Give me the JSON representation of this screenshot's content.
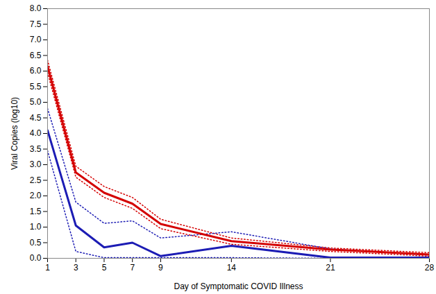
{
  "chart_data": {
    "type": "line",
    "x_label": "Day of Symptomatic COVID Illness",
    "y_label": "Viral Copies (log10)",
    "x": [
      1,
      3,
      5,
      7,
      9,
      14,
      21,
      28
    ],
    "xlim": [
      1,
      28
    ],
    "xticks": [
      1,
      3,
      5,
      7,
      9,
      14,
      21,
      28
    ],
    "ylim": [
      0,
      8
    ],
    "yticks": [
      {
        "value": 0,
        "label": "0.0"
      },
      {
        "value": 0.5,
        "label": "0.5"
      },
      {
        "value": 1,
        "label": "1.0"
      },
      {
        "value": 1.5,
        "label": "1.5"
      },
      {
        "value": 2,
        "label": "2.0"
      },
      {
        "value": 2.5,
        "label": "2.5"
      },
      {
        "value": 3,
        "label": "3.0"
      },
      {
        "value": 3.5,
        "label": "3.5"
      },
      {
        "value": 4,
        "label": "4.0"
      },
      {
        "value": 4.5,
        "label": "4.5"
      },
      {
        "value": 5,
        "label": "5.0"
      },
      {
        "value": 5.5,
        "label": "5.5"
      },
      {
        "value": 6,
        "label": "6.0"
      },
      {
        "value": 6.5,
        "label": "6.5"
      },
      {
        "value": 7,
        "label": "7.0"
      },
      {
        "value": 7.5,
        "label": "7.5"
      },
      {
        "value": 8,
        "label": "8.0"
      }
    ],
    "grid": false,
    "series": [
      {
        "color": "#d40000",
        "line_style": "solid",
        "values": [
          6.15,
          2.75,
          2.1,
          1.75,
          1.1,
          0.55,
          0.28,
          0.12
        ]
      },
      {
        "color": "#d40000",
        "line_style": "dotted",
        "values": [
          6.35,
          2.95,
          2.3,
          1.95,
          1.25,
          0.65,
          0.33,
          0.18
        ]
      },
      {
        "color": "#d40000",
        "line_style": "dotted",
        "values": [
          5.95,
          2.6,
          1.95,
          1.6,
          0.95,
          0.45,
          0.22,
          0.07
        ]
      },
      {
        "color": "#1c1cb4",
        "line_style": "solid",
        "values": [
          4.1,
          1.05,
          0.35,
          0.5,
          0.07,
          0.4,
          0.02,
          0.02
        ]
      },
      {
        "color": "#1c1cb4",
        "line_style": "dotted",
        "values": [
          4.8,
          1.8,
          1.12,
          1.2,
          0.65,
          0.85,
          0.3,
          0.1
        ]
      },
      {
        "color": "#1c1cb4",
        "line_style": "dotted",
        "values": [
          3.45,
          0.22,
          0.02,
          0.02,
          0.02,
          0.02,
          0.0,
          0.0
        ]
      }
    ]
  }
}
